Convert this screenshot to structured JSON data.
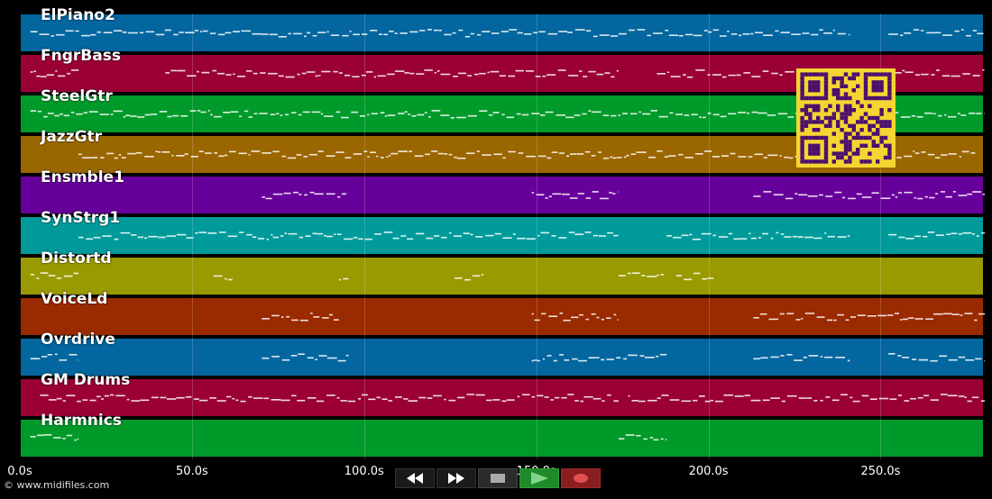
{
  "tracks": [
    {
      "name": "ElPiano2",
      "color": "#03669f"
    },
    {
      "name": "FngrBass",
      "color": "#9a0036"
    },
    {
      "name": "SteelGtr",
      "color": "#009a2a"
    },
    {
      "name": "JazzGtr",
      "color": "#9a6600"
    },
    {
      "name": "Ensmble1",
      "color": "#67009a"
    },
    {
      "name": "SynStrg1",
      "color": "#009a9a"
    },
    {
      "name": "Distortd",
      "color": "#999a00"
    },
    {
      "name": "VoiceLd",
      "color": "#9a2a00"
    },
    {
      "name": "Ovrdrive",
      "color": "#03669f"
    },
    {
      "name": "GM Drums",
      "color": "#9a0036"
    },
    {
      "name": "Harmnics",
      "color": "#009a2a"
    }
  ],
  "timeline": {
    "ticks": [
      "0.0s",
      "50.0s",
      "100.0s",
      "150.0s",
      "200.0s",
      "250.0s"
    ],
    "tick_values": [
      0,
      50,
      100,
      150,
      200,
      250
    ],
    "max_seconds": 280
  },
  "footer": {
    "copyright": "© www.midifiles.com"
  },
  "controls": [
    {
      "name": "rewind-button",
      "icon": "rewind-icon"
    },
    {
      "name": "fast-forward-button",
      "icon": "fast-forward-icon"
    },
    {
      "name": "stop-button",
      "icon": "stop-icon"
    },
    {
      "name": "play-button",
      "icon": "play-icon"
    },
    {
      "name": "record-button",
      "icon": "record-icon"
    }
  ],
  "qr": {
    "icon": "qr-code-icon",
    "fg": "#4b0f6e",
    "bg": "#f5d531"
  }
}
